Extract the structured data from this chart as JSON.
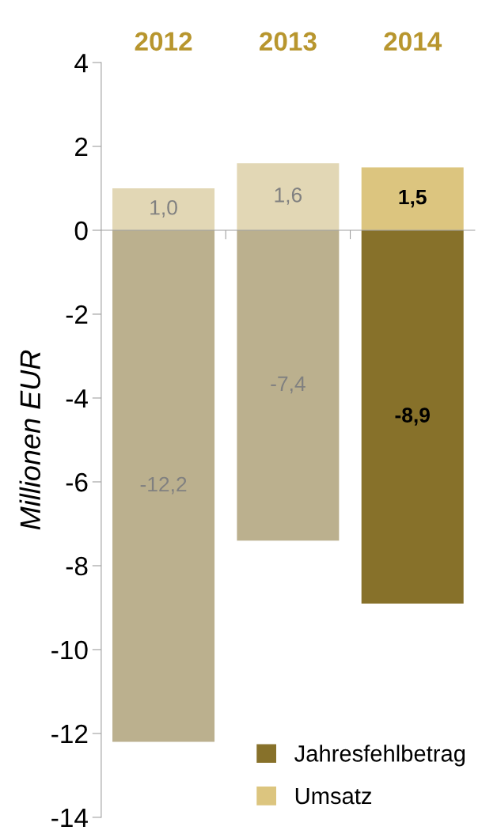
{
  "chart_data": {
    "type": "bar",
    "categories": [
      "2012",
      "2013",
      "2014"
    ],
    "ylabel": "Millionen EUR",
    "ylim": [
      -14,
      4
    ],
    "yticks": [
      -14,
      -12,
      -10,
      -8,
      -6,
      -4,
      -2,
      0,
      2,
      4
    ],
    "series": [
      {
        "name": "Jahresfehlbetrag",
        "colors": [
          "#bbb08e",
          "#bbb08e",
          "#87712a"
        ],
        "values": [
          -12.2,
          -7.4,
          -8.9
        ],
        "value_labels": [
          "-12,2",
          "-7,4",
          "-8,9"
        ]
      },
      {
        "name": "Umsatz",
        "colors": [
          "#e2d7b5",
          "#e2d7b5",
          "#dcc57f"
        ],
        "values": [
          1.0,
          1.6,
          1.5
        ],
        "value_labels": [
          "1,0",
          "1,6",
          "1,5"
        ]
      }
    ],
    "stacked": true,
    "legend": "bottom right"
  }
}
